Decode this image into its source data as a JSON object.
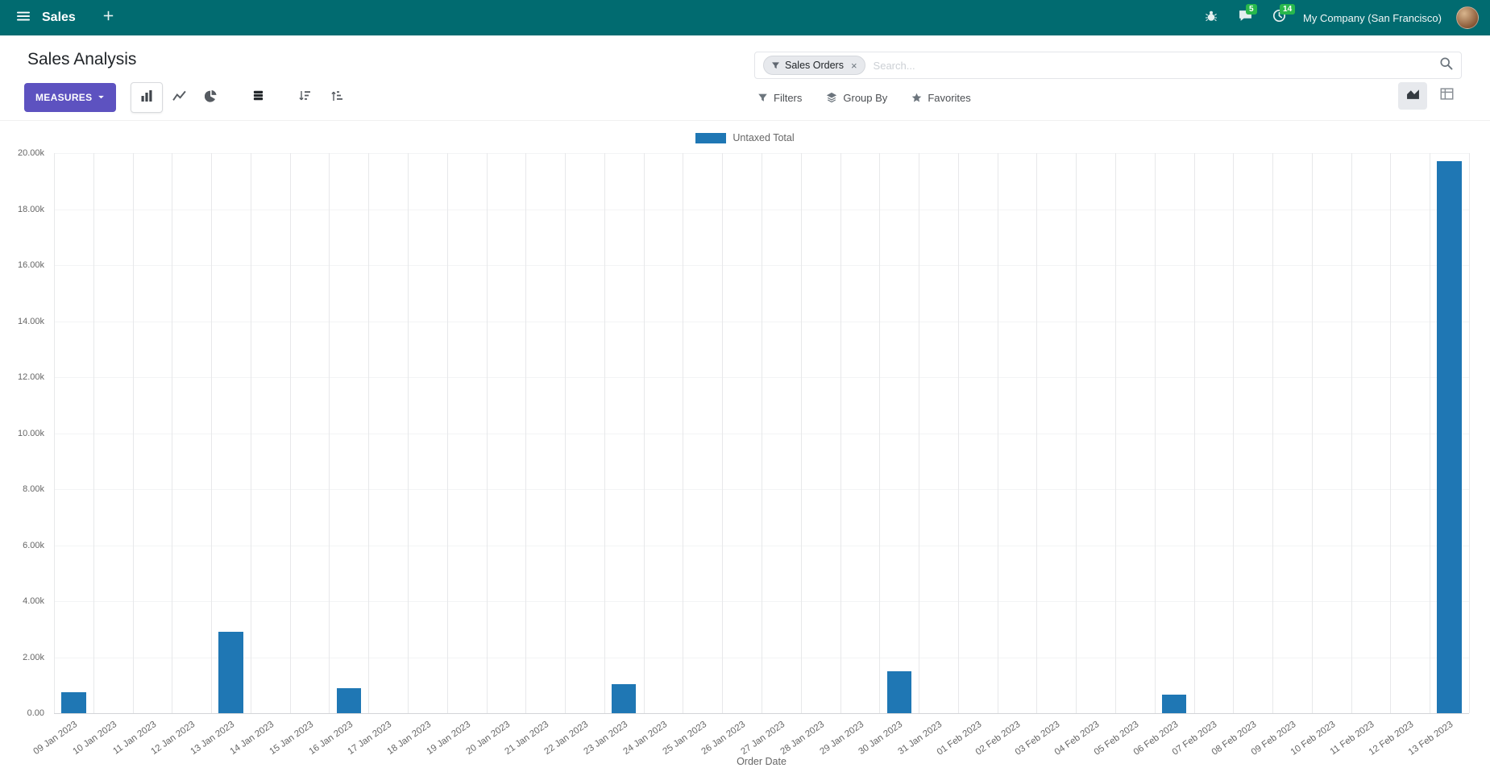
{
  "colors": {
    "nav-bg": "#016b70",
    "primary-btn": "#5d52c0",
    "bar": "#1f77b4",
    "badge": "#28b84c"
  },
  "nav": {
    "app_name": "Sales",
    "company": "My Company (San Francisco)",
    "messages_badge": "5",
    "activities_badge": "14"
  },
  "control_panel": {
    "title": "Sales Analysis",
    "measures_label": "MEASURES",
    "filters_label": "Filters",
    "group_by_label": "Group By",
    "favorites_label": "Favorites",
    "search": {
      "facet_label": "Sales Orders",
      "placeholder": "Search...",
      "remove": "×"
    }
  },
  "chart_data": {
    "type": "bar",
    "legend": "Untaxed Total",
    "xlabel": "Order Date",
    "ylabel": "",
    "ylim": [
      0,
      20000
    ],
    "grid": {
      "vertical": true,
      "horizontal": true
    },
    "legend_position": "top",
    "y_ticks": [
      {
        "v": 0,
        "label": "0.00"
      },
      {
        "v": 2000,
        "label": "2.00k"
      },
      {
        "v": 4000,
        "label": "4.00k"
      },
      {
        "v": 6000,
        "label": "6.00k"
      },
      {
        "v": 8000,
        "label": "8.00k"
      },
      {
        "v": 10000,
        "label": "10.00k"
      },
      {
        "v": 12000,
        "label": "12.00k"
      },
      {
        "v": 14000,
        "label": "14.00k"
      },
      {
        "v": 16000,
        "label": "16.00k"
      },
      {
        "v": 18000,
        "label": "18.00k"
      },
      {
        "v": 20000,
        "label": "20.00k"
      }
    ],
    "categories": [
      "09 Jan 2023",
      "10 Jan 2023",
      "11 Jan 2023",
      "12 Jan 2023",
      "13 Jan 2023",
      "14 Jan 2023",
      "15 Jan 2023",
      "16 Jan 2023",
      "17 Jan 2023",
      "18 Jan 2023",
      "19 Jan 2023",
      "20 Jan 2023",
      "21 Jan 2023",
      "22 Jan 2023",
      "23 Jan 2023",
      "24 Jan 2023",
      "25 Jan 2023",
      "26 Jan 2023",
      "27 Jan 2023",
      "28 Jan 2023",
      "29 Jan 2023",
      "30 Jan 2023",
      "31 Jan 2023",
      "01 Feb 2023",
      "02 Feb 2023",
      "03 Feb 2023",
      "04 Feb 2023",
      "05 Feb 2023",
      "06 Feb 2023",
      "07 Feb 2023",
      "08 Feb 2023",
      "09 Feb 2023",
      "10 Feb 2023",
      "11 Feb 2023",
      "12 Feb 2023",
      "13 Feb 2023"
    ],
    "values": [
      750,
      0,
      0,
      0,
      2900,
      0,
      0,
      900,
      0,
      0,
      0,
      0,
      0,
      0,
      1050,
      0,
      0,
      0,
      0,
      0,
      0,
      1500,
      0,
      0,
      0,
      0,
      0,
      0,
      650,
      0,
      0,
      0,
      0,
      0,
      0,
      19700
    ]
  }
}
